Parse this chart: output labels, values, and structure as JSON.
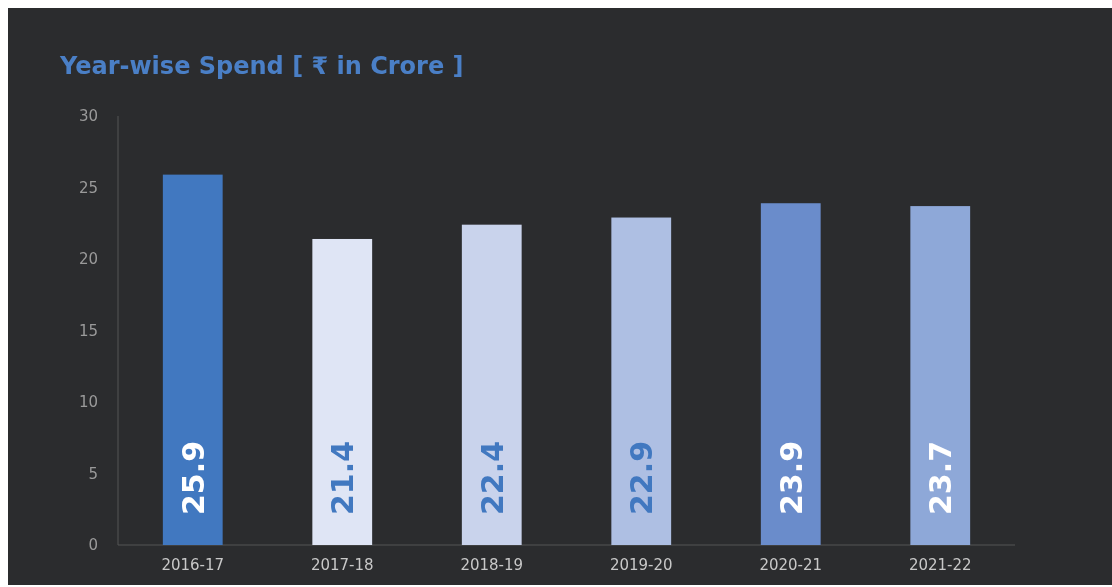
{
  "chart_data": {
    "type": "bar",
    "title": "Year-wise Spend [ ₹ in Crore ]",
    "categories": [
      "2016-17",
      "2017-18",
      "2018-19",
      "2019-20",
      "2020-21",
      "2021-22"
    ],
    "values": [
      25.9,
      21.4,
      22.4,
      22.9,
      23.9,
      23.7
    ],
    "colors": [
      "#4178c0",
      "#dfe5f5",
      "#c9d3ec",
      "#aebfe3",
      "#6a8ccb",
      "#8ea8d8"
    ],
    "ylim": [
      0,
      30
    ],
    "yticks": [
      0,
      5,
      10,
      15,
      20,
      25,
      30
    ],
    "data_labels": true,
    "grid": false
  }
}
